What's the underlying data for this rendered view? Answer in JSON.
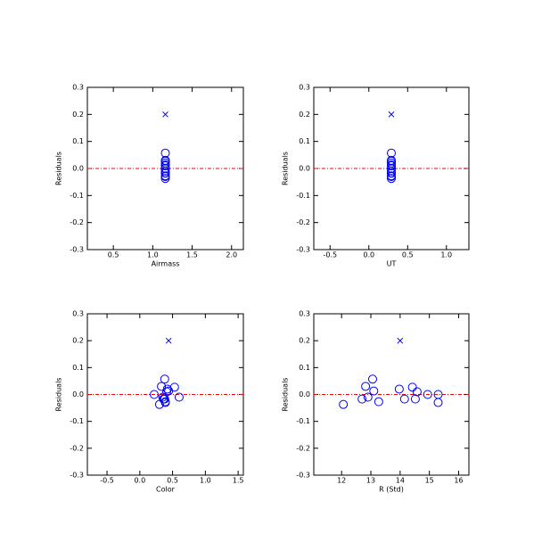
{
  "chart_data": [
    {
      "type": "scatter",
      "x_label": "Airmass",
      "y_label": "Residuals",
      "xlim": [
        0.17,
        2.15
      ],
      "xticks": [
        0.5,
        {
          "value": 1,
          "label": "1.0"
        },
        1.5,
        {
          "value": 2,
          "label": "2.0"
        }
      ],
      "ylim": [
        -0.3,
        0.3
      ],
      "yticks": [
        -0.3,
        -0.2,
        -0.1,
        {
          "value": 0,
          "label": "0.0"
        },
        0.1,
        0.2,
        0.3
      ],
      "hline": {
        "value": 0,
        "color": "#ff0000"
      },
      "series": [
        {
          "marker": "circle",
          "color": "#0000ff",
          "x": [
            1.16,
            1.16,
            1.16,
            1.16,
            1.16,
            1.16,
            1.16,
            1.16,
            1.16,
            1.16,
            1.16,
            1.16,
            1.16,
            1.16,
            1.16
          ],
          "values": [
            -0.037,
            -0.017,
            0.03,
            -0.01,
            0.057,
            0.013,
            -0.027,
            0.02,
            -0.017,
            0.027,
            -0.017,
            0.01,
            0.0,
            0.0,
            -0.03
          ]
        },
        {
          "marker": "x",
          "color": "#0000ff",
          "x": [
            1.16
          ],
          "values": [
            0.2
          ]
        }
      ]
    },
    {
      "type": "scatter",
      "x_label": "UT",
      "y_label": "Residuals",
      "xlim": [
        -0.71,
        1.29
      ],
      "xticks": [
        -0.5,
        {
          "value": 0,
          "label": "0.0"
        },
        0.5,
        {
          "value": 1,
          "label": "1.0"
        }
      ],
      "ylim": [
        -0.3,
        0.3
      ],
      "yticks": [
        -0.3,
        -0.2,
        -0.1,
        {
          "value": 0,
          "label": "0.0"
        },
        0.1,
        0.2,
        0.3
      ],
      "hline": {
        "value": 0,
        "color": "#ff0000"
      },
      "series": [
        {
          "marker": "circle",
          "color": "#0000ff",
          "x": [
            0.29,
            0.29,
            0.29,
            0.29,
            0.29,
            0.29,
            0.29,
            0.29,
            0.29,
            0.29,
            0.29,
            0.29,
            0.29,
            0.29,
            0.29
          ],
          "values": [
            -0.037,
            -0.017,
            0.03,
            -0.01,
            0.057,
            0.013,
            -0.027,
            0.02,
            -0.017,
            0.027,
            -0.017,
            0.01,
            0.0,
            0.0,
            -0.03
          ]
        },
        {
          "marker": "x",
          "color": "#0000ff",
          "x": [
            0.29
          ],
          "values": [
            0.2
          ]
        }
      ]
    },
    {
      "type": "scatter",
      "x_label": "Color",
      "y_label": "Residuals",
      "xlim": [
        -0.8,
        1.58
      ],
      "xticks": [
        -0.5,
        {
          "value": 0,
          "label": "0.0"
        },
        0.5,
        {
          "value": 1,
          "label": "1.0"
        },
        1.5
      ],
      "ylim": [
        -0.3,
        0.3
      ],
      "yticks": [
        -0.3,
        -0.2,
        -0.1,
        {
          "value": 0,
          "label": "0.0"
        },
        0.1,
        0.2,
        0.3
      ],
      "hline": {
        "value": 0,
        "color": "#ff0000"
      },
      "series": [
        {
          "marker": "circle",
          "color": "#0000ff",
          "x": [
            0.3,
            0.37,
            0.33,
            0.35,
            0.38,
            0.44,
            0.39,
            0.42,
            0.38,
            0.53,
            0.36,
            0.41,
            0.22,
            0.6,
            0.39
          ],
          "values": [
            -0.037,
            -0.017,
            0.03,
            -0.01,
            0.057,
            0.013,
            -0.027,
            0.02,
            -0.017,
            0.027,
            -0.017,
            0.01,
            0.0,
            -0.01,
            -0.03
          ]
        },
        {
          "marker": "x",
          "color": "#0000ff",
          "x": [
            0.44
          ],
          "values": [
            0.2
          ]
        }
      ]
    },
    {
      "type": "scatter",
      "x_label": "R (Std)",
      "y_label": "Residuals",
      "xlim": [
        11.05,
        16.35
      ],
      "xticks": [
        12,
        13,
        14,
        15,
        16
      ],
      "ylim": [
        -0.3,
        0.3
      ],
      "yticks": [
        -0.3,
        -0.2,
        -0.1,
        {
          "value": 0,
          "label": "0.0"
        },
        0.1,
        0.2,
        0.3
      ],
      "hline": {
        "value": 0,
        "color": "#ff0000"
      },
      "series": [
        {
          "marker": "circle",
          "color": "#0000ff",
          "x": [
            12.06,
            12.7,
            12.82,
            12.9,
            13.06,
            13.1,
            13.27,
            13.97,
            14.15,
            14.42,
            14.52,
            14.58,
            14.94,
            15.3,
            15.3
          ],
          "values": [
            -0.037,
            -0.017,
            0.03,
            -0.01,
            0.057,
            0.013,
            -0.027,
            0.02,
            -0.017,
            0.027,
            -0.017,
            0.01,
            0.0,
            0.0,
            -0.03
          ]
        },
        {
          "marker": "x",
          "color": "#0000ff",
          "x": [
            14.0
          ],
          "values": [
            0.2
          ]
        }
      ]
    }
  ]
}
